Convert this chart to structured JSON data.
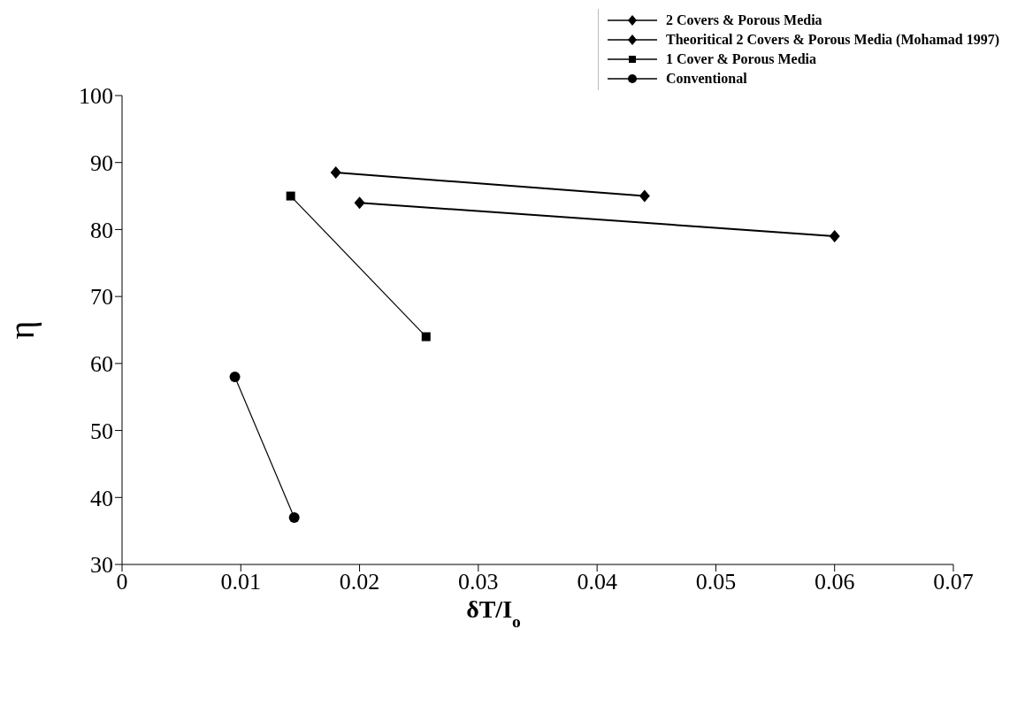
{
  "chart_data": {
    "type": "line",
    "xlabel": "δT/I$_{o}$",
    "ylabel": "η",
    "xlim": [
      0,
      0.07
    ],
    "xticks": [
      0,
      0.01,
      0.02,
      0.03,
      0.04,
      0.05,
      0.06,
      0.07
    ],
    "ylim": [
      30,
      100
    ],
    "yticks": [
      30,
      40,
      50,
      60,
      70,
      80,
      90,
      100
    ],
    "grid": false,
    "legend": "top right",
    "line_style": "solid",
    "series": [
      {
        "name": "2 Covers & Porous Media",
        "color": "#000000",
        "marker": "diamond",
        "x": [
          0.018,
          0.044
        ],
        "values": [
          88.5,
          85
        ]
      },
      {
        "name": "Theoritical 2 Covers & Porous Media (Mohamad 1997)",
        "color": "#000000",
        "marker": "diamond",
        "x": [
          0.02,
          0.06
        ],
        "values": [
          84,
          79
        ]
      },
      {
        "name": "1 Cover & Porous Media",
        "color": "#000000",
        "marker": "square",
        "x": [
          0.0142,
          0.0256
        ],
        "values": [
          85,
          64
        ]
      },
      {
        "name": "Conventional",
        "color": "#000000",
        "marker": "circle",
        "x": [
          0.0095,
          0.0145
        ],
        "values": [
          58,
          37
        ]
      }
    ]
  }
}
